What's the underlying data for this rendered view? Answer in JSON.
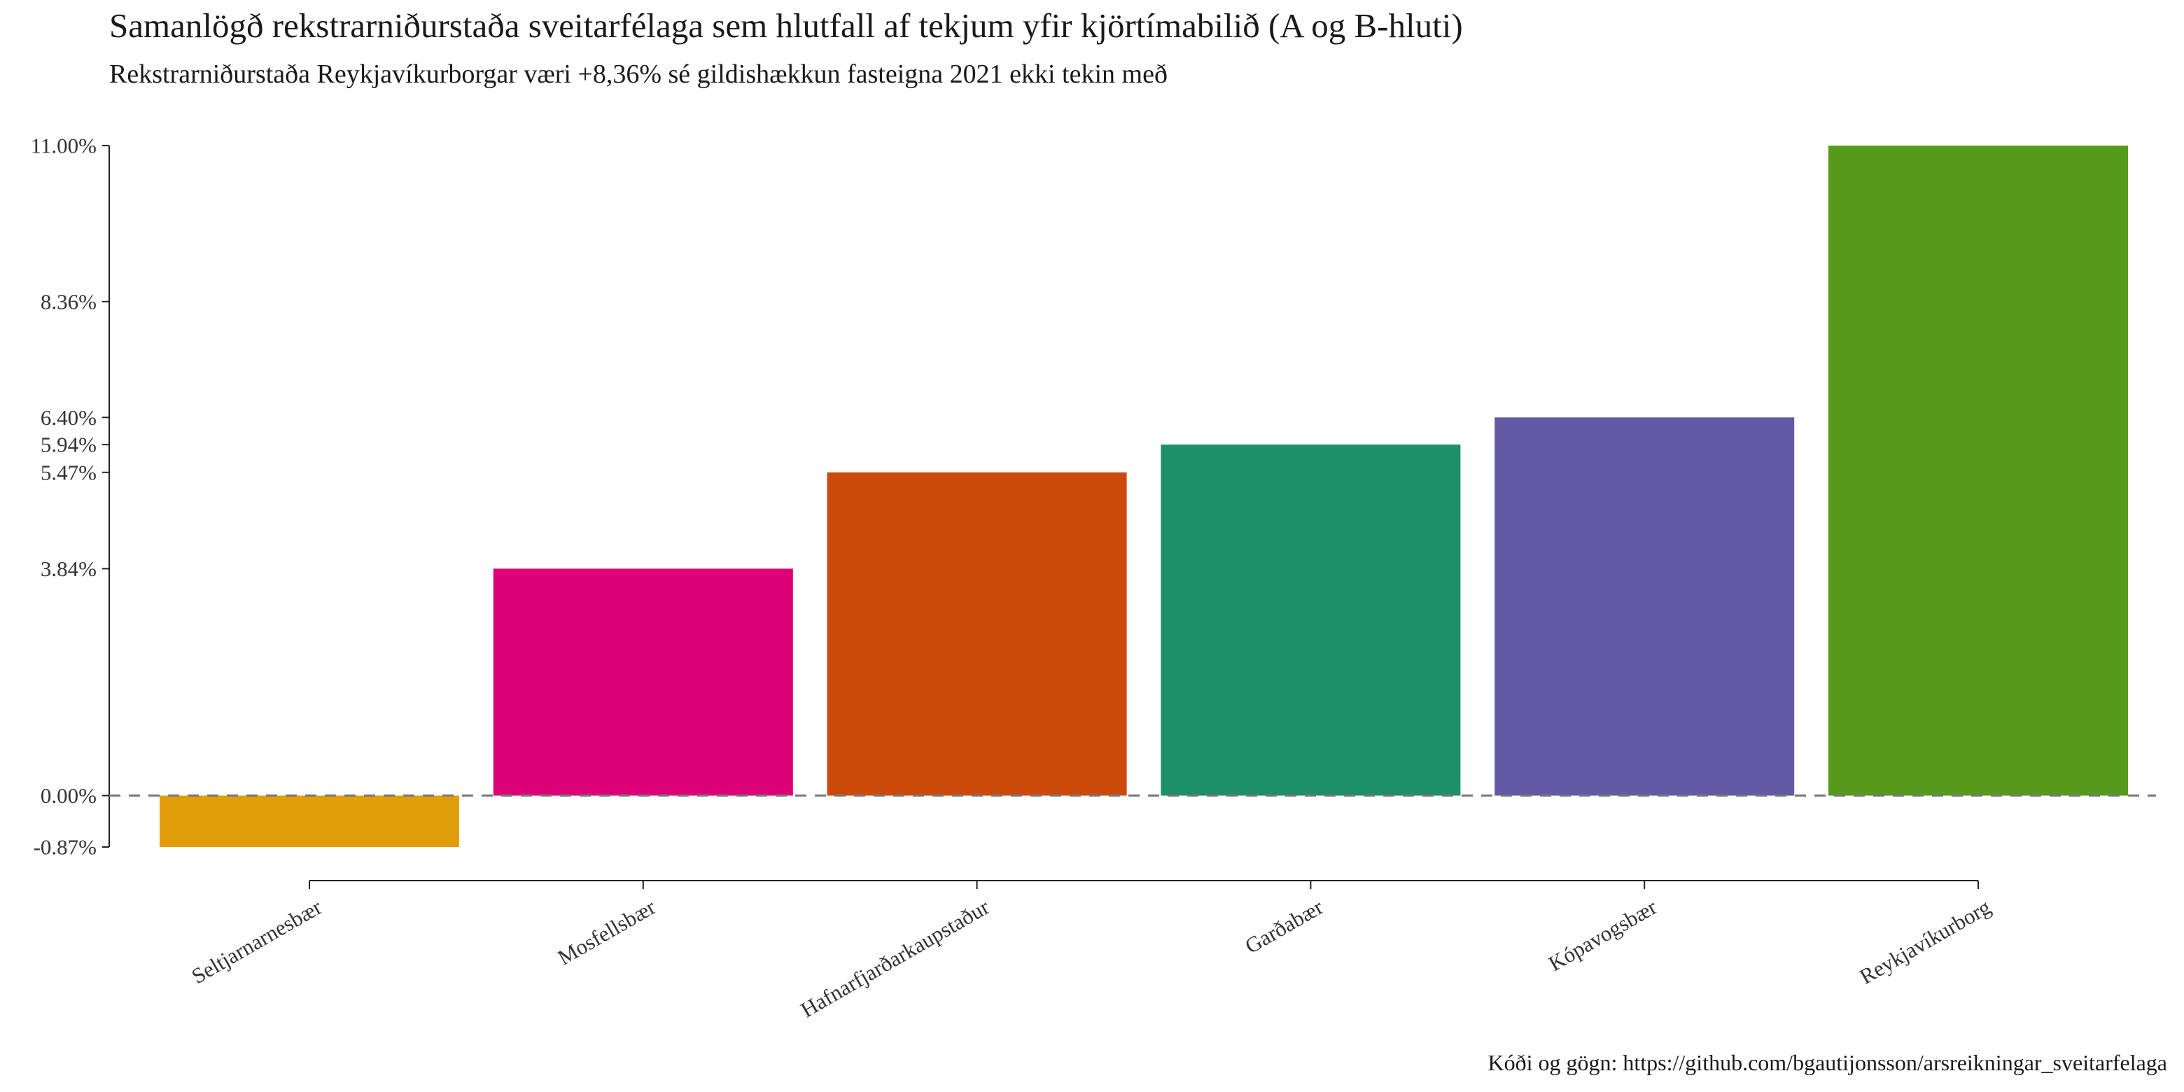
{
  "chart_data": {
    "type": "bar",
    "title": "Samanlögð rekstrarniðurstaða sveitarfélaga sem hlutfall af tekjum yfir kjörtímabilið (A og B-hluti)",
    "subtitle": "Rekstrarniðurstaða Reykjavíkurborgar væri +8,36% sé gildishækkun fasteigna 2021 ekki tekin með",
    "caption": "Kóði og gögn: https://github.com/bgautijonsson/arsreikningar_sveitarfelaga",
    "xlabel": "",
    "ylabel": "",
    "categories": [
      "Seltjarnarnesbær",
      "Mosfellsbær",
      "Hafnarfjarðarkaupstaður",
      "Garðabær",
      "Kópavogsbær",
      "Reykjavíkurborg"
    ],
    "values": [
      -0.87,
      3.84,
      5.47,
      5.94,
      6.4,
      11.0
    ],
    "colors": [
      "#E29E0A",
      "#DD0077",
      "#CC4A0C",
      "#1E8F68",
      "#625AA5",
      "#569A1B"
    ],
    "y_ticks": [
      -0.87,
      0.0,
      3.84,
      5.47,
      5.94,
      6.4,
      8.36,
      11.0
    ],
    "y_tick_labels": [
      "-0.87%",
      "0.00%",
      "3.84%",
      "5.47%",
      "5.94%",
      "6.40%",
      "8.36%",
      "11.00%"
    ],
    "ylim": [
      -0.87,
      11.0
    ],
    "reference_line": {
      "value": 0,
      "style": "dashed",
      "color": "#777777"
    },
    "grid": false,
    "legend": "none"
  }
}
